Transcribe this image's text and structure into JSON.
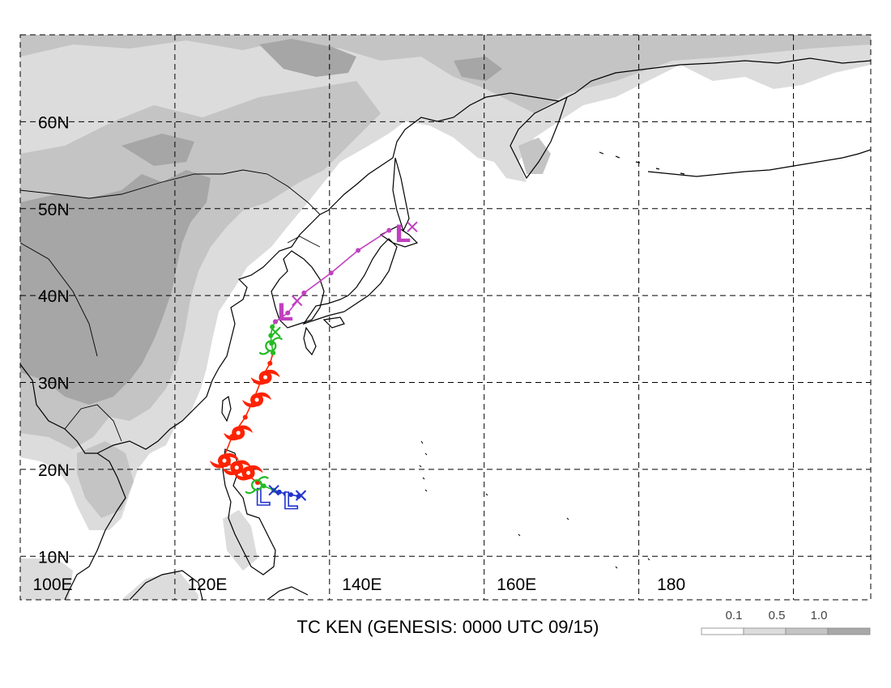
{
  "title": "TC KEN (GENESIS: 0000 UTC 09/15)",
  "map": {
    "lon_range": [
      100,
      210
    ],
    "lat_range": [
      5,
      70
    ],
    "lat_labels": [
      "10N",
      "20N",
      "30N",
      "40N",
      "50N",
      "60N"
    ],
    "lon_labels": [
      "100E",
      "120E",
      "140E",
      "160E",
      "180"
    ]
  },
  "legend": {
    "labels": [
      "0.1",
      "0.5",
      "1.0"
    ],
    "colors": [
      "#ffffff",
      "#dcdcdc",
      "#c4c4c4",
      "#a8a8a8"
    ]
  },
  "colors": {
    "land_light": "#dcdcdc",
    "land_mid": "#c4c4c4",
    "land_dark": "#a6a6a6",
    "track_magenta": "#c040c0",
    "track_green": "#22bb22",
    "track_red": "#ff2200",
    "track_blue": "#2233cc"
  },
  "track_segments": [
    {
      "color": "blue",
      "lon": [
        136.0,
        135.0,
        134.3,
        133.5,
        132.8
      ],
      "lat": [
        16.9,
        17.1,
        17.2,
        17.4,
        17.6
      ]
    },
    {
      "color": "green",
      "lon": [
        132.8,
        131.5,
        130.7
      ],
      "lat": [
        17.6,
        18.1,
        18.5
      ]
    },
    {
      "color": "red",
      "lon": [
        130.7,
        129.6,
        128.2,
        126.9,
        126.3,
        127.4,
        129.1,
        130.3,
        131.4,
        132.3,
        132.7
      ],
      "lat": [
        18.5,
        19.2,
        19.9,
        20.7,
        21.3,
        23.8,
        26.0,
        28.3,
        30.8,
        32.2,
        33.4
      ]
    },
    {
      "color": "green",
      "lon": [
        132.7,
        132.5,
        132.4,
        132.6,
        133.0
      ],
      "lat": [
        33.4,
        34.5,
        35.4,
        36.4,
        37.0
      ]
    },
    {
      "color": "magenta",
      "lon": [
        133.0,
        134.6,
        136.7,
        140.2,
        143.7,
        147.7
      ],
      "lat": [
        37.0,
        38.0,
        40.3,
        42.6,
        45.2,
        47.5
      ]
    }
  ],
  "symbols": [
    {
      "type": "low",
      "color": "blue",
      "lon": 131.4,
      "lat": 17.2
    },
    {
      "type": "cross",
      "color": "blue",
      "lon": 132.8,
      "lat": 17.6
    },
    {
      "type": "low",
      "color": "blue",
      "lon": 135.0,
      "lat": 16.8
    },
    {
      "type": "cross",
      "color": "blue",
      "lon": 136.3,
      "lat": 17.0
    },
    {
      "type": "storm",
      "color": "green",
      "lon": 130.6,
      "lat": 18.2
    },
    {
      "type": "storm",
      "color": "red",
      "lon": 126.4,
      "lat": 21.0
    },
    {
      "type": "storm",
      "color": "red",
      "lon": 128.0,
      "lat": 20.2
    },
    {
      "type": "storm",
      "color": "red",
      "lon": 129.5,
      "lat": 19.6
    },
    {
      "type": "storm",
      "color": "red",
      "lon": 128.2,
      "lat": 24.2
    },
    {
      "type": "storm",
      "color": "red",
      "lon": 130.6,
      "lat": 28.0
    },
    {
      "type": "storm",
      "color": "red",
      "lon": 131.7,
      "lat": 30.6
    },
    {
      "type": "storm",
      "color": "green",
      "lon": 132.4,
      "lat": 34.2
    },
    {
      "type": "cross",
      "color": "green",
      "lon": 133.0,
      "lat": 35.8
    },
    {
      "type": "low",
      "color": "magenta",
      "lon": 134.3,
      "lat": 38.5
    },
    {
      "type": "cross",
      "color": "magenta",
      "lon": 135.8,
      "lat": 39.4
    },
    {
      "type": "low",
      "color": "magenta",
      "lon": 149.5,
      "lat": 47.5
    },
    {
      "type": "cross",
      "color": "magenta",
      "lon": 150.7,
      "lat": 47.9
    }
  ]
}
